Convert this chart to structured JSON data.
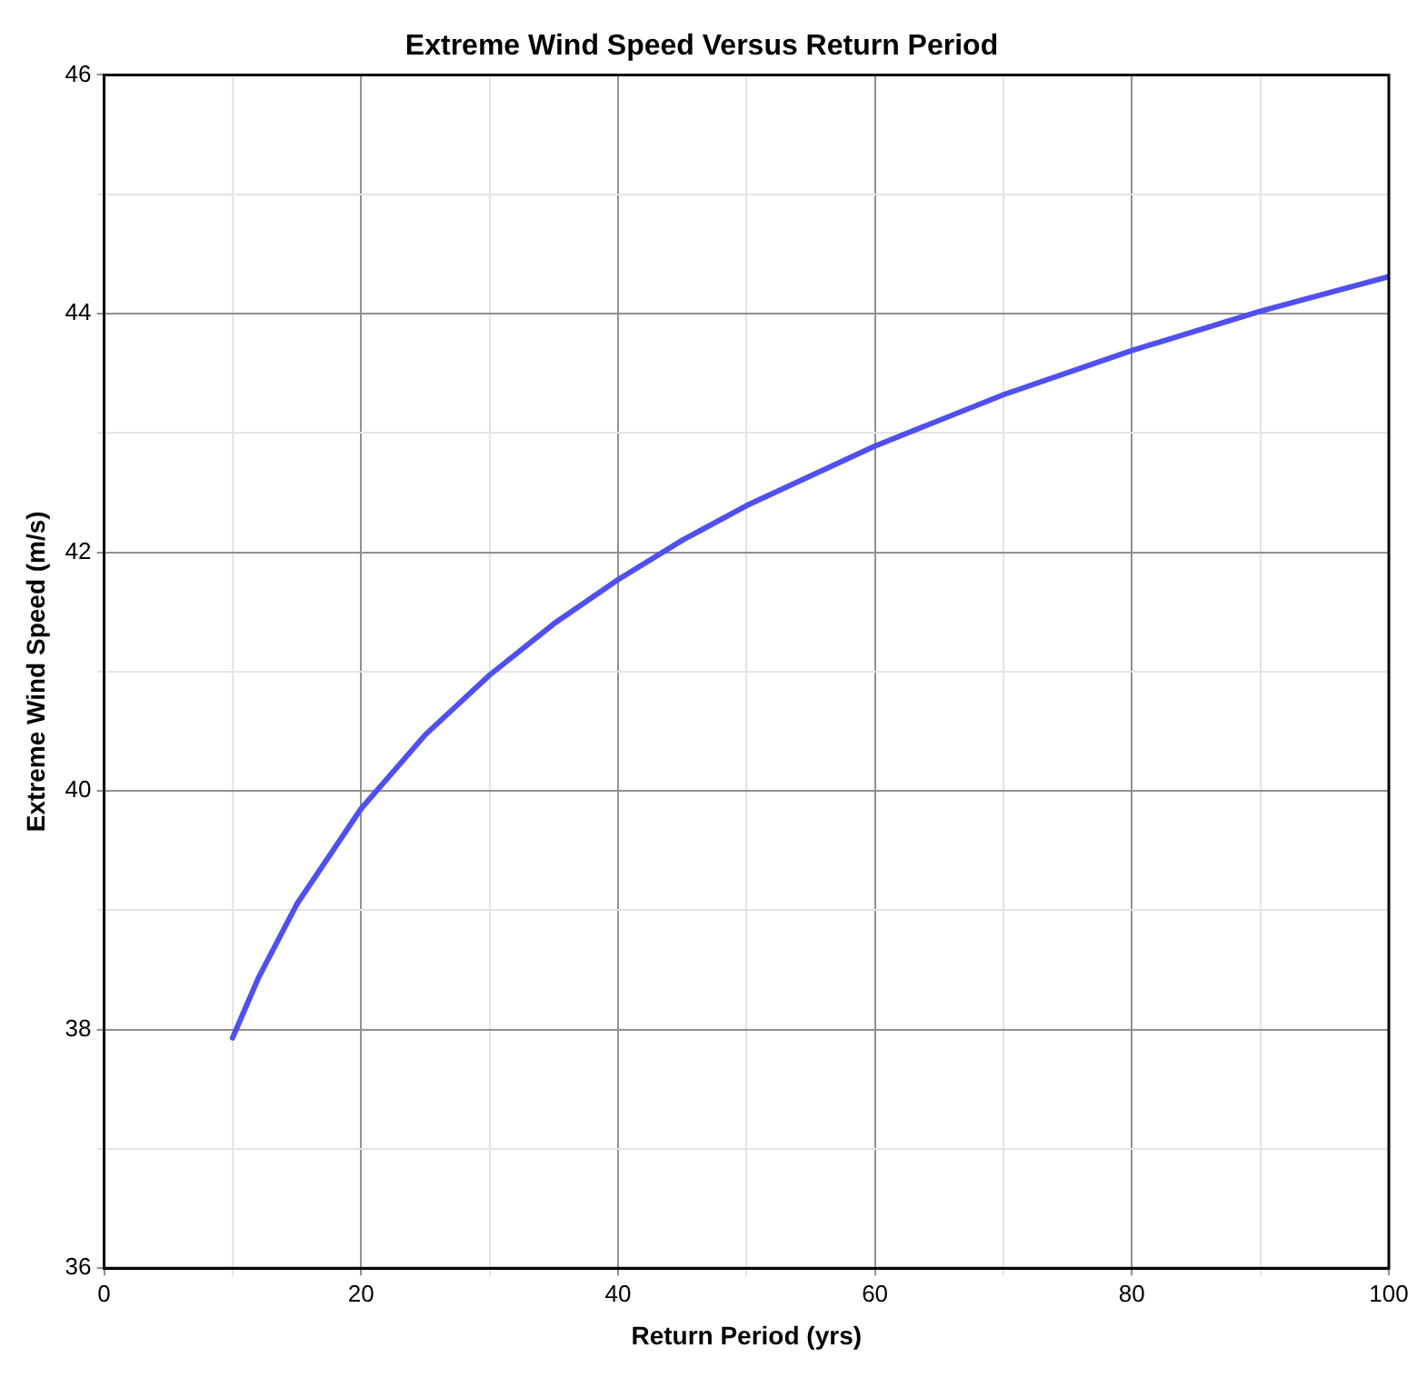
{
  "chart_data": {
    "type": "line",
    "title": "Extreme Wind Speed Versus Return Period",
    "xlabel": "Return Period (yrs)",
    "ylabel": "Extreme Wind Speed (m/s)",
    "x": [
      10,
      12,
      15,
      20,
      25,
      30,
      35,
      40,
      45,
      50,
      60,
      70,
      80,
      90,
      100
    ],
    "series": [
      {
        "color": "#5050f0",
        "values": [
          37.93,
          38.43,
          39.05,
          39.85,
          40.47,
          40.97,
          41.4,
          41.77,
          42.1,
          42.39,
          42.89,
          43.32,
          43.69,
          44.02,
          44.31
        ]
      }
    ],
    "xlim": [
      0,
      100
    ],
    "ylim": [
      36,
      46
    ],
    "xticks": [
      0,
      {
        "value": 10,
        "label": null
      },
      20,
      {
        "value": 30,
        "label": null
      },
      40,
      {
        "value": 50,
        "label": null
      },
      60,
      {
        "value": 70,
        "label": null
      },
      80,
      {
        "value": 90,
        "label": null
      },
      100
    ],
    "yticks": [
      36,
      {
        "value": 37,
        "label": null
      },
      38,
      {
        "value": 39,
        "label": null
      },
      40,
      {
        "value": 41,
        "label": null
      },
      42,
      {
        "value": 43,
        "label": null
      },
      44,
      {
        "value": 45,
        "label": null
      },
      46
    ],
    "grid": true,
    "legend": false,
    "marker": "none",
    "line_style": "solid"
  }
}
